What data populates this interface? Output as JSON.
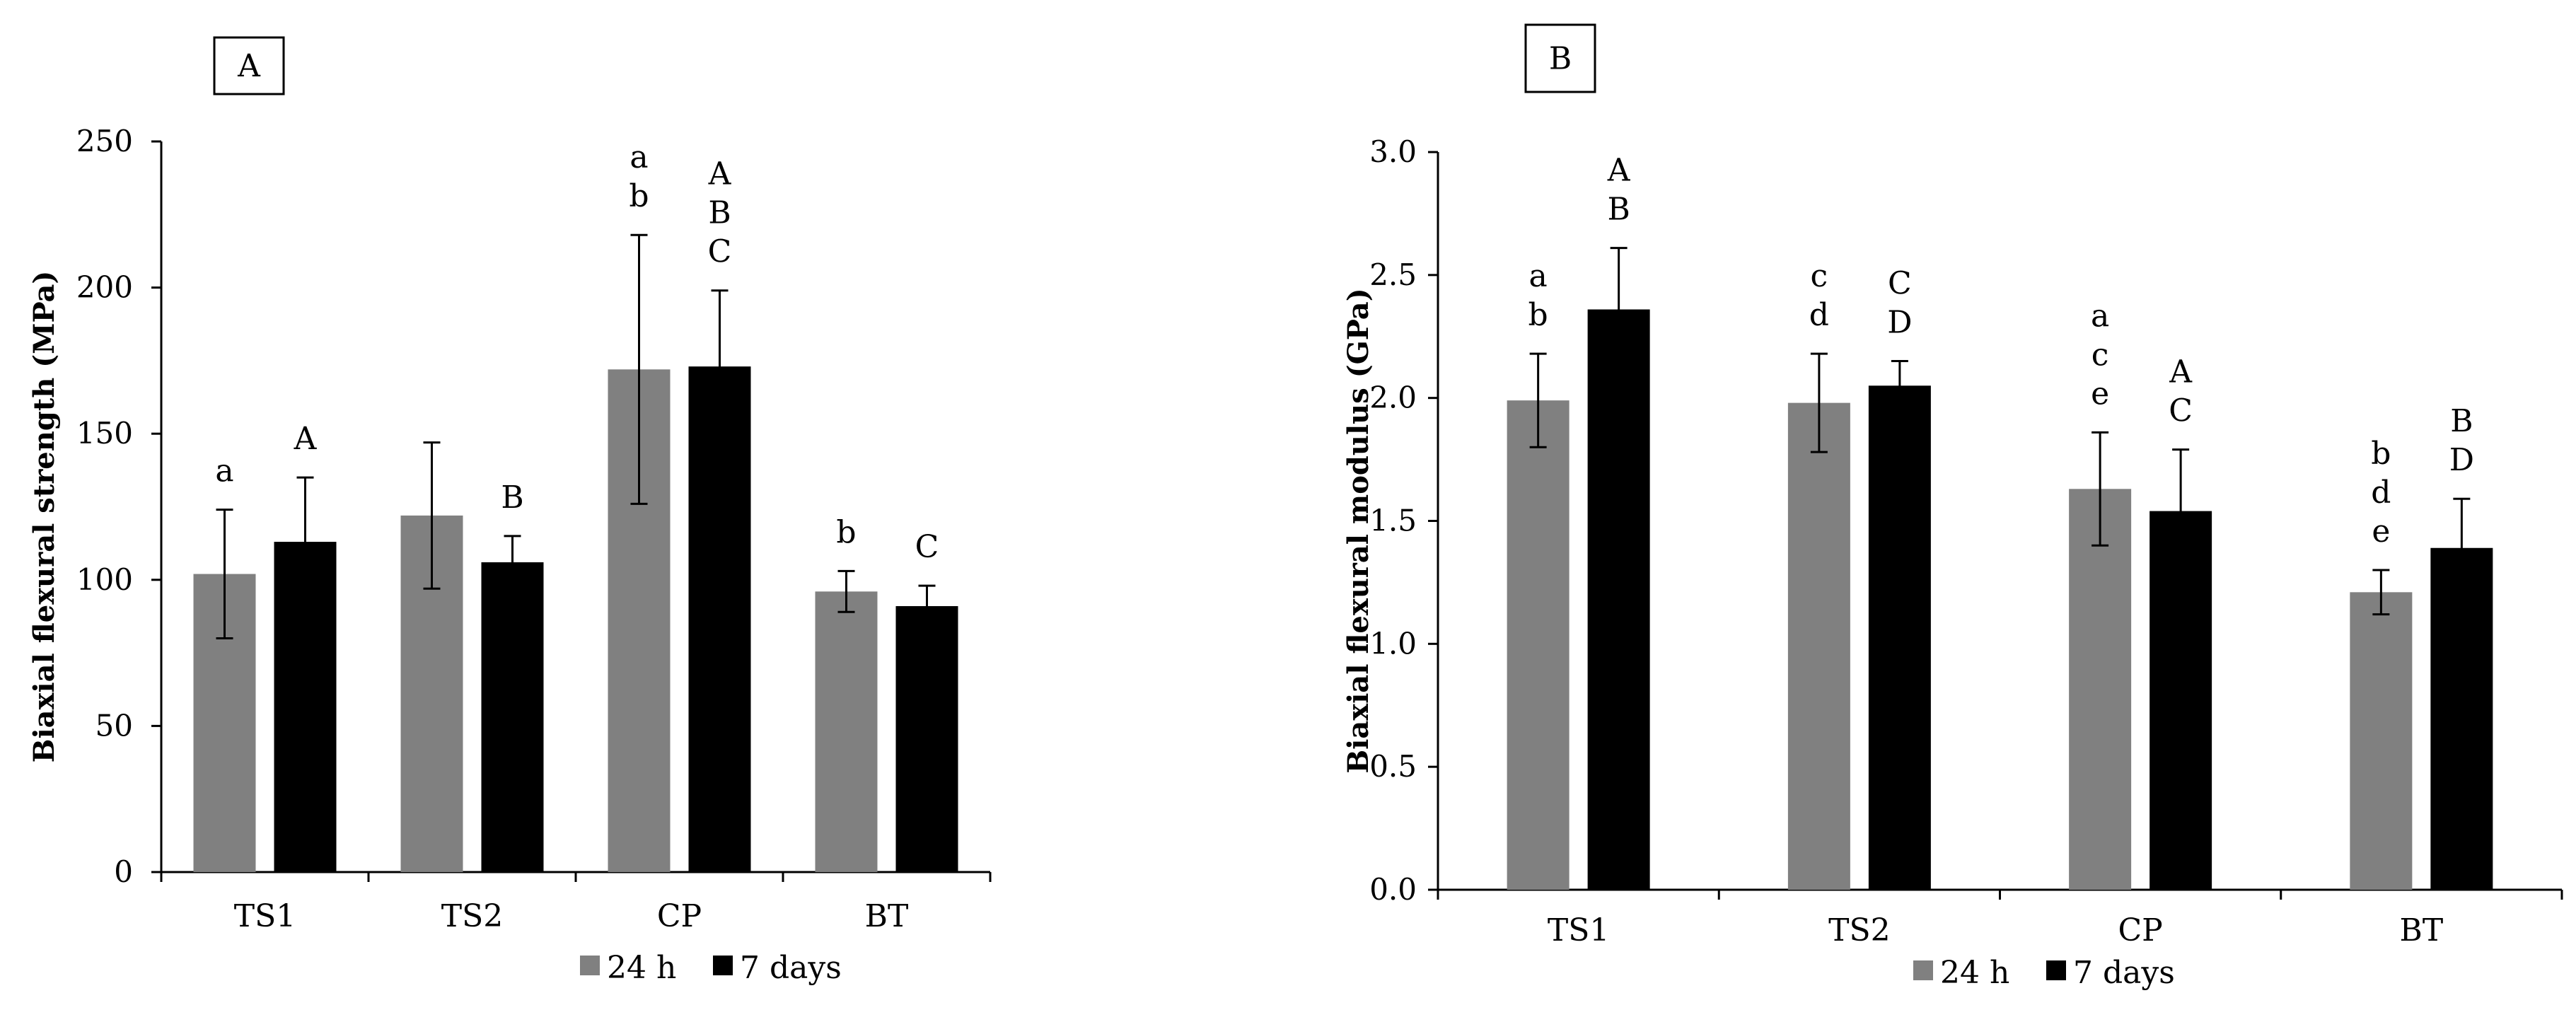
{
  "colors": {
    "series_24h": "#808080",
    "series_7days": "#000000",
    "axis": "#000000"
  },
  "chart_data": [
    {
      "type": "bar",
      "panel_label": "A",
      "ylabel": "Biaxial flexural strength (MPa)",
      "xlabel": "",
      "ylim": [
        0,
        250
      ],
      "yticks": [
        0,
        50,
        100,
        150,
        200,
        250
      ],
      "ytick_labels": [
        "0",
        "50",
        "100",
        "150",
        "200",
        "250"
      ],
      "categories": [
        "TS1",
        "TS2",
        "CP",
        "BT"
      ],
      "legend": [
        "24 h",
        "7 days"
      ],
      "series": [
        {
          "name": "24 h",
          "values": [
            102,
            122,
            172,
            96
          ],
          "errors": [
            22,
            25,
            46,
            7
          ],
          "labels": [
            "a",
            "",
            "a\nb",
            "b"
          ]
        },
        {
          "name": "7 days",
          "values": [
            113,
            106,
            173,
            91
          ],
          "errors": [
            22,
            9,
            26,
            7
          ],
          "labels": [
            "A",
            "B",
            "A\nB\nC",
            "C"
          ]
        }
      ]
    },
    {
      "type": "bar",
      "panel_label": "B",
      "ylabel": "Biaxial flexural modulus (GPa)",
      "xlabel": "",
      "ylim": [
        0,
        3.0
      ],
      "yticks": [
        0,
        0.5,
        1.0,
        1.5,
        2.0,
        2.5,
        3.0
      ],
      "ytick_labels": [
        "0.0",
        "0.5",
        "1.0",
        "1.5",
        "2.0",
        "2.5",
        "3.0"
      ],
      "categories": [
        "TS1",
        "TS2",
        "CP",
        "BT"
      ],
      "legend": [
        "24 h",
        "7 days"
      ],
      "series": [
        {
          "name": "24 h",
          "values": [
            1.99,
            1.98,
            1.63,
            1.21
          ],
          "errors": [
            0.19,
            0.2,
            0.23,
            0.09
          ],
          "labels": [
            "a\nb",
            "c\nd",
            "a\nc\ne",
            "b\nd\ne"
          ]
        },
        {
          "name": "7 days",
          "values": [
            2.36,
            2.05,
            1.54,
            1.39
          ],
          "errors": [
            0.25,
            0.1,
            0.25,
            0.2
          ],
          "labels": [
            "A\nB",
            "C\nD",
            "A\nC",
            "B\nD"
          ]
        }
      ]
    }
  ]
}
